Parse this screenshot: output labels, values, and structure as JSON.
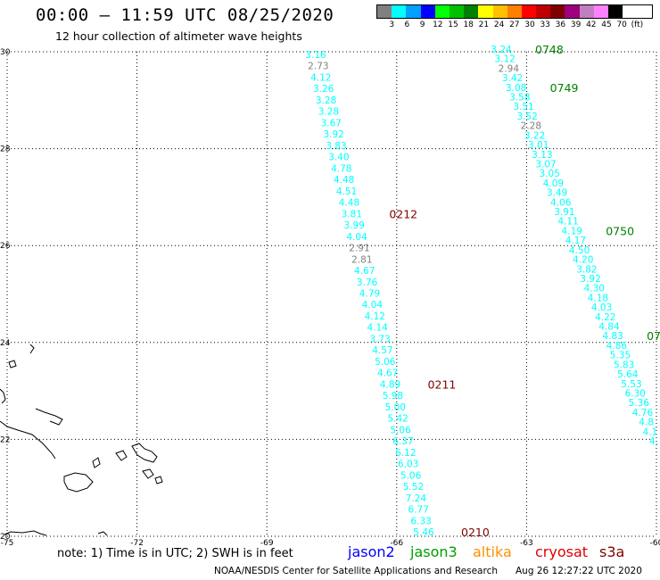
{
  "header": {
    "title": "00:00 – 11:59 UTC 08/25/2020",
    "subtitle": "12 hour collection of altimeter wave heights"
  },
  "legend": {
    "colors": [
      "#808080",
      "#00ffff",
      "#00a0ff",
      "#0000ff",
      "#00ff00",
      "#00c000",
      "#008000",
      "#ffff00",
      "#ffc000",
      "#ff8000",
      "#ff0000",
      "#c00000",
      "#800000",
      "#a00080",
      "#c080c0",
      "#ff80ff",
      "#000000"
    ],
    "labels": [
      "3",
      "6",
      "9",
      "12",
      "15",
      "18",
      "21",
      "24",
      "27",
      "30",
      "33",
      "36",
      "39",
      "42",
      "45",
      "70",
      "(ft)"
    ]
  },
  "axes": {
    "lon_labels": [
      "-75",
      "-72",
      "-69",
      "-66",
      "-63",
      "-60"
    ],
    "lat_labels": [
      "30",
      "28",
      "26",
      "24",
      "22",
      "20"
    ]
  },
  "tracks": [
    {
      "name": "left-track",
      "labels": [
        {
          "t": "3.16",
          "c": "#00ffff"
        },
        {
          "t": "2.73",
          "c": "#808080"
        },
        {
          "t": "4.12",
          "c": "#00ffff"
        },
        {
          "t": "3.26",
          "c": "#00ffff"
        },
        {
          "t": "3.28",
          "c": "#00ffff"
        },
        {
          "t": "3.28",
          "c": "#00ffff"
        },
        {
          "t": "3.67",
          "c": "#00ffff"
        },
        {
          "t": "3.92",
          "c": "#00ffff"
        },
        {
          "t": "3.83",
          "c": "#00ffff"
        },
        {
          "t": "3.40",
          "c": "#00ffff"
        },
        {
          "t": "4.78",
          "c": "#00ffff"
        },
        {
          "t": "4.48",
          "c": "#00ffff"
        },
        {
          "t": "4.51",
          "c": "#00ffff"
        },
        {
          "t": "4.48",
          "c": "#00ffff"
        },
        {
          "t": "3.81",
          "c": "#00ffff"
        },
        {
          "t": "3.99",
          "c": "#00ffff"
        },
        {
          "t": "4.04",
          "c": "#00ffff"
        },
        {
          "t": "2.91",
          "c": "#808080"
        },
        {
          "t": "2.81",
          "c": "#808080"
        },
        {
          "t": "4.67",
          "c": "#00ffff"
        },
        {
          "t": "3.76",
          "c": "#00ffff"
        },
        {
          "t": "4.79",
          "c": "#00ffff"
        },
        {
          "t": "4.04",
          "c": "#00ffff"
        },
        {
          "t": "4.12",
          "c": "#00ffff"
        },
        {
          "t": "4.14",
          "c": "#00ffff"
        },
        {
          "t": "3.73",
          "c": "#00ffff"
        },
        {
          "t": "4.57",
          "c": "#00ffff"
        },
        {
          "t": "5.06",
          "c": "#00ffff"
        },
        {
          "t": "4.67",
          "c": "#00ffff"
        },
        {
          "t": "4.89",
          "c": "#00ffff"
        },
        {
          "t": "5.98",
          "c": "#00ffff"
        },
        {
          "t": "5.00",
          "c": "#00ffff"
        },
        {
          "t": "5.42",
          "c": "#00ffff"
        },
        {
          "t": "5.06",
          "c": "#00ffff"
        },
        {
          "t": "6.37",
          "c": "#00ffff"
        },
        {
          "t": "6.12",
          "c": "#00ffff"
        },
        {
          "t": "6.03",
          "c": "#00ffff"
        },
        {
          "t": "5.06",
          "c": "#00ffff"
        },
        {
          "t": "5.52",
          "c": "#00ffff"
        },
        {
          "t": "7.24",
          "c": "#00ffff"
        },
        {
          "t": "6.77",
          "c": "#00ffff"
        },
        {
          "t": "6.33",
          "c": "#00ffff"
        },
        {
          "t": "5.46",
          "c": "#00ffff"
        }
      ],
      "times": [
        {
          "t": "0212",
          "c": "#800000",
          "at": 14
        },
        {
          "t": "0211",
          "c": "#800000",
          "at": 29
        },
        {
          "t": "0210",
          "c": "#800000",
          "at": 42
        }
      ]
    },
    {
      "name": "right-track",
      "labels": [
        {
          "t": "3.24",
          "c": "#00ffff"
        },
        {
          "t": "3.12",
          "c": "#00ffff"
        },
        {
          "t": "2.94",
          "c": "#808080"
        },
        {
          "t": "3.42",
          "c": "#00ffff"
        },
        {
          "t": "3.08",
          "c": "#00ffff"
        },
        {
          "t": "3.58",
          "c": "#00ffff"
        },
        {
          "t": "3.51",
          "c": "#00ffff"
        },
        {
          "t": "3.52",
          "c": "#00ffff"
        },
        {
          "t": "2.28",
          "c": "#808080"
        },
        {
          "t": "3.22",
          "c": "#00ffff"
        },
        {
          "t": "3.01",
          "c": "#00ffff"
        },
        {
          "t": "3.13",
          "c": "#00ffff"
        },
        {
          "t": "3.07",
          "c": "#00ffff"
        },
        {
          "t": "3.05",
          "c": "#00ffff"
        },
        {
          "t": "4.09",
          "c": "#00ffff"
        },
        {
          "t": "3.49",
          "c": "#00ffff"
        },
        {
          "t": "4.06",
          "c": "#00ffff"
        },
        {
          "t": "3.91",
          "c": "#00ffff"
        },
        {
          "t": "4.11",
          "c": "#00ffff"
        },
        {
          "t": "4.19",
          "c": "#00ffff"
        },
        {
          "t": "4.17",
          "c": "#00ffff"
        },
        {
          "t": "4.50",
          "c": "#00ffff"
        },
        {
          "t": "4.20",
          "c": "#00ffff"
        },
        {
          "t": "3.82",
          "c": "#00ffff"
        },
        {
          "t": "3.92",
          "c": "#00ffff"
        },
        {
          "t": "4.30",
          "c": "#00ffff"
        },
        {
          "t": "4.18",
          "c": "#00ffff"
        },
        {
          "t": "4.03",
          "c": "#00ffff"
        },
        {
          "t": "4.22",
          "c": "#00ffff"
        },
        {
          "t": "4.84",
          "c": "#00ffff"
        },
        {
          "t": "4.83",
          "c": "#00ffff"
        },
        {
          "t": "4.86",
          "c": "#00ffff"
        },
        {
          "t": "5.35",
          "c": "#00ffff"
        },
        {
          "t": "5.83",
          "c": "#00ffff"
        },
        {
          "t": "5.64",
          "c": "#00ffff"
        },
        {
          "t": "5.53",
          "c": "#00ffff"
        },
        {
          "t": "6.30",
          "c": "#00ffff"
        },
        {
          "t": "5.36",
          "c": "#00ffff"
        },
        {
          "t": "4.76",
          "c": "#00ffff"
        },
        {
          "t": "4.8",
          "c": "#00ffff"
        },
        {
          "t": "4.1",
          "c": "#00ffff"
        },
        {
          "t": "4.",
          "c": "#00ffff"
        }
      ],
      "times": [
        {
          "t": "0748",
          "c": "#008000",
          "at": 0
        },
        {
          "t": "0749",
          "c": "#008000",
          "at": 4
        },
        {
          "t": "0750",
          "c": "#008000",
          "at": 19
        },
        {
          "t": "075",
          "c": "#008000",
          "at": 30
        },
        {
          "t": "0",
          "c": "#008000",
          "at": 34
        }
      ]
    }
  ],
  "footer": {
    "note": "note: 1) Time is in UTC; 2) SWH is in feet",
    "missions": [
      {
        "name": "jason2",
        "color": "#0000ff"
      },
      {
        "name": "jason3",
        "color": "#00a000"
      },
      {
        "name": "altika",
        "color": "#ff9000"
      },
      {
        "name": "cryosat",
        "color": "#e00000"
      },
      {
        "name": "s3a",
        "color": "#800000"
      }
    ],
    "credit": "NOAA/NESDIS Center for Satellite Applications and Research",
    "timestamp": "Aug 26 12:27:22 UTC 2020"
  }
}
